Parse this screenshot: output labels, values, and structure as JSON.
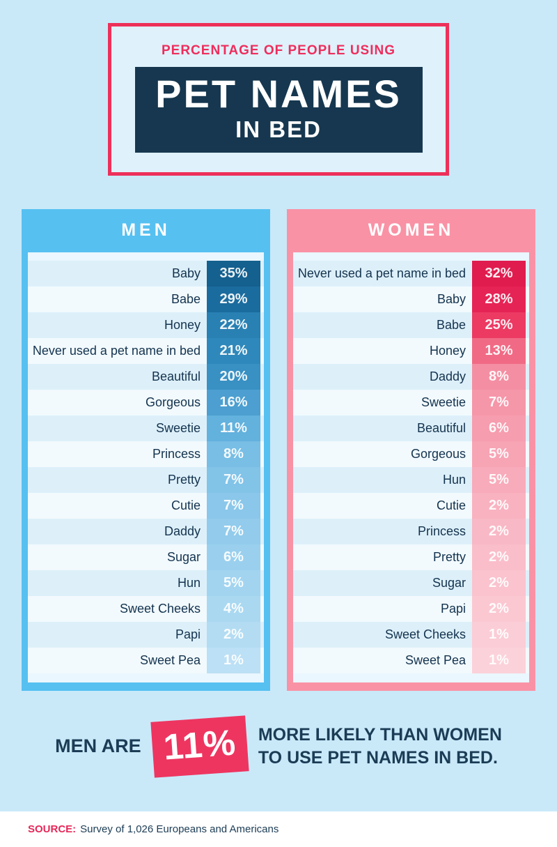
{
  "title": {
    "eyebrow": "PERCENTAGE OF PEOPLE USING",
    "main": "PET NAMES",
    "sub": "IN BED"
  },
  "panels": [
    {
      "title": "MEN",
      "theme": "blue",
      "frame_color": "#56c0f1",
      "rows": [
        {
          "name": "Baby",
          "value": "35%"
        },
        {
          "name": "Babe",
          "value": "29%"
        },
        {
          "name": "Honey",
          "value": "22%"
        },
        {
          "name": "Never used a pet name in bed",
          "value": "21%"
        },
        {
          "name": "Beautiful",
          "value": "20%"
        },
        {
          "name": "Gorgeous",
          "value": "16%"
        },
        {
          "name": "Sweetie",
          "value": "11%"
        },
        {
          "name": "Princess",
          "value": "8%"
        },
        {
          "name": "Pretty",
          "value": "7%"
        },
        {
          "name": "Cutie",
          "value": "7%"
        },
        {
          "name": "Daddy",
          "value": "7%"
        },
        {
          "name": "Sugar",
          "value": "6%"
        },
        {
          "name": "Hun",
          "value": "5%"
        },
        {
          "name": "Sweet Cheeks",
          "value": "4%"
        },
        {
          "name": "Papi",
          "value": "2%"
        },
        {
          "name": "Sweet Pea",
          "value": "1%"
        }
      ],
      "bar_colors": [
        "#14608f",
        "#1b6c9e",
        "#2980b3",
        "#2f88bb",
        "#3890c3",
        "#4c9fd0",
        "#63b1dd",
        "#78bee5",
        "#82c3e8",
        "#8ac7ea",
        "#92cbec",
        "#9ad0ee",
        "#a2d4f0",
        "#aad8f1",
        "#b3dcf3",
        "#bce0f5"
      ]
    },
    {
      "title": "WOMEN",
      "theme": "pink",
      "frame_color": "#f992a5",
      "rows": [
        {
          "name": "Never used a pet name in bed",
          "value": "32%"
        },
        {
          "name": "Baby",
          "value": "28%"
        },
        {
          "name": "Babe",
          "value": "25%"
        },
        {
          "name": "Honey",
          "value": "13%"
        },
        {
          "name": "Daddy",
          "value": "8%"
        },
        {
          "name": "Sweetie",
          "value": "7%"
        },
        {
          "name": "Beautiful",
          "value": "6%"
        },
        {
          "name": "Gorgeous",
          "value": "5%"
        },
        {
          "name": "Hun",
          "value": "5%"
        },
        {
          "name": "Cutie",
          "value": "2%"
        },
        {
          "name": "Princess",
          "value": "2%"
        },
        {
          "name": "Pretty",
          "value": "2%"
        },
        {
          "name": "Sugar",
          "value": "2%"
        },
        {
          "name": "Papi",
          "value": "2%"
        },
        {
          "name": "Sweet Cheeks",
          "value": "1%"
        },
        {
          "name": "Sweet Pea",
          "value": "1%"
        }
      ],
      "bar_colors": [
        "#e01c4f",
        "#e62355",
        "#ec3a63",
        "#f16a85",
        "#f48fa3",
        "#f596a9",
        "#f69daf",
        "#f7a4b5",
        "#f8abba",
        "#f9b2c0",
        "#f9b8c5",
        "#fabeca",
        "#fac3ce",
        "#fbc8d2",
        "#fbcdd6",
        "#fcd2da"
      ]
    }
  ],
  "callout": {
    "prefix": "MEN ARE",
    "highlight": "11%",
    "line1": "MORE LIKELY THAN WOMEN",
    "line2": "TO USE PET NAMES IN BED."
  },
  "footer": {
    "source_label": "SOURCE:",
    "source_text": "Survey of 1,026 Europeans and Americans"
  },
  "colors": {
    "background": "#c9e9f9",
    "accent_pink": "#ed3059",
    "navy": "#16374f",
    "men_frame": "#56c0f1",
    "women_frame": "#f992a5",
    "callout_badge": "#ee3560"
  },
  "chart_data": [
    {
      "type": "table",
      "title": "Men",
      "unit": "%",
      "categories": [
        "Baby",
        "Babe",
        "Honey",
        "Never used a pet name in bed",
        "Beautiful",
        "Gorgeous",
        "Sweetie",
        "Princess",
        "Pretty",
        "Cutie",
        "Daddy",
        "Sugar",
        "Hun",
        "Sweet Cheeks",
        "Papi",
        "Sweet Pea"
      ],
      "values": [
        35,
        29,
        22,
        21,
        20,
        16,
        11,
        8,
        7,
        7,
        7,
        6,
        5,
        4,
        2,
        1
      ]
    },
    {
      "type": "table",
      "title": "Women",
      "unit": "%",
      "categories": [
        "Never used a pet name in bed",
        "Baby",
        "Babe",
        "Honey",
        "Daddy",
        "Sweetie",
        "Beautiful",
        "Gorgeous",
        "Hun",
        "Cutie",
        "Princess",
        "Pretty",
        "Sugar",
        "Papi",
        "Sweet Cheeks",
        "Sweet Pea"
      ],
      "values": [
        32,
        28,
        25,
        13,
        8,
        7,
        6,
        5,
        5,
        2,
        2,
        2,
        2,
        2,
        1,
        1
      ]
    },
    {
      "type": "annotation",
      "title": "Percentage of People Using Pet Names in Bed",
      "note": "Men are 11% more likely than women to use pet names in bed.",
      "source": "Survey of 1,026 Europeans and Americans"
    }
  ]
}
